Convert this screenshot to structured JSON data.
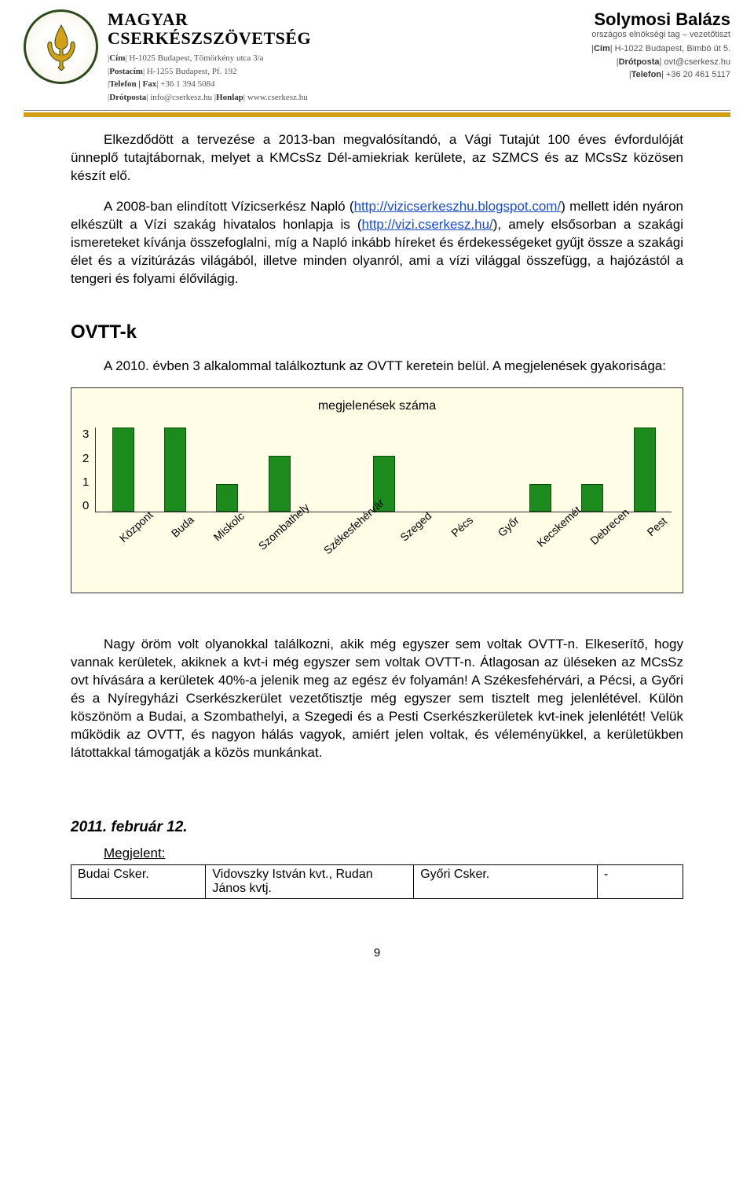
{
  "letterhead": {
    "org_line1": "MAGYAR",
    "org_line2": "CSERKÉSZSZÖVETSÉG",
    "left_rows": [
      {
        "label": "Cím",
        "value": "H-1025 Budapest, Tömörkény utca 3/a"
      },
      {
        "label": "Postacím",
        "value": "H-1255 Budapest, Pf. 192"
      },
      {
        "label": "Telefon | Fax",
        "value": "+36 1 394 5084"
      },
      {
        "label": "Drótposta",
        "value": "info@cserkesz.hu",
        "label2": "Honlap",
        "value2": "www.cserkesz.hu"
      }
    ],
    "right_name": "Solymosi Balázs",
    "right_role": "országos elnökségi tag – vezetőtiszt",
    "right_rows": [
      {
        "label": "Cím",
        "value": "H-1022 Budapest, Bimbó út 5."
      },
      {
        "label": "Drótposta",
        "value": "ovt@cserkesz.hu"
      },
      {
        "label": "Telefon",
        "value": "+36 20 461 5117"
      }
    ]
  },
  "body": {
    "para1_a": "Elkezdődött a tervezése a 2013-ban megvalósítandó, a Vági Tutajút 100 éves évfordulóját ünneplő tutajtábornak, melyet a KMCsSz Dél-amiekriak kerülete, az SZMCS és az MCsSz közösen készít elő.",
    "para2_a": "A 2008-ban elindított Vízicserkész Napló (",
    "para2_link1": "http://vizicserkeszhu.blogspot.com/",
    "para2_b": ") mellett idén nyáron elkészült a Vízi szakág hivatalos honlapja is (",
    "para2_link2": "http://vizi.cserkesz.hu/",
    "para2_c": "), amely elsősorban a szakági ismereteket kívánja összefoglalni, míg a Napló inkább híreket és érdekességeket gyűjt össze a szakági élet és a vízitúrázás világából, illetve minden olyanról, ami a vízi világgal összefügg, a hajózástól a tengeri és folyami élővilágig.",
    "heading_ovtt": "OVTT-k",
    "para3": "A 2010. évben 3 alkalommal találkoztunk az OVTT keretein belül. A megjelenések gyakorisága:",
    "para4": "Nagy öröm volt olyanokkal találkozni, akik még egyszer sem voltak OVTT-n. Elkeserítő, hogy vannak kerületek, akiknek a kvt-i még egyszer sem voltak OVTT-n. Átlagosan az üléseken az MCsSz ovt hívására a kerületek 40%-a jelenik meg az egész év folyamán! A Székesfehérvári, a Pécsi, a Győri és a Nyíregyházi Cserkészkerület vezetőtisztje még egyszer sem tisztelt meg jelenlétével. Külön köszönöm a Budai, a Szombathelyi, a Szegedi és a Pesti Cserkészkerületek kvt-inek jelenlétét! Velük működik az OVTT, és nagyon hálás vagyok, amiért jelen voltak, és véleményükkel, a kerületükben látottakkal támogatják a közös munkánkat.",
    "date_heading": "2011. február 12.",
    "attend_label": "Megjelent:"
  },
  "chart": {
    "title": "megjelenések száma",
    "y_ticks": [
      "3",
      "2",
      "1",
      "0"
    ],
    "y_max": 3,
    "bar_color": "#1c8a1c",
    "bar_border": "#0d4d0d",
    "background": "#fffde6",
    "categories": [
      "Központ",
      "Buda",
      "Miskolc",
      "Szombathely",
      "Székesfehérvár",
      "Szeged",
      "Pécs",
      "Győr",
      "Kecskemét",
      "Debrecen",
      "Pest"
    ],
    "values": [
      3,
      3,
      1,
      2,
      0,
      2,
      0,
      0,
      1,
      1,
      3
    ]
  },
  "table": {
    "rows": [
      [
        "Budai Csker.",
        "Vidovszky István kvt., Rudan János kvtj.",
        "Győri Csker.",
        "-"
      ]
    ]
  },
  "page_number": "9"
}
